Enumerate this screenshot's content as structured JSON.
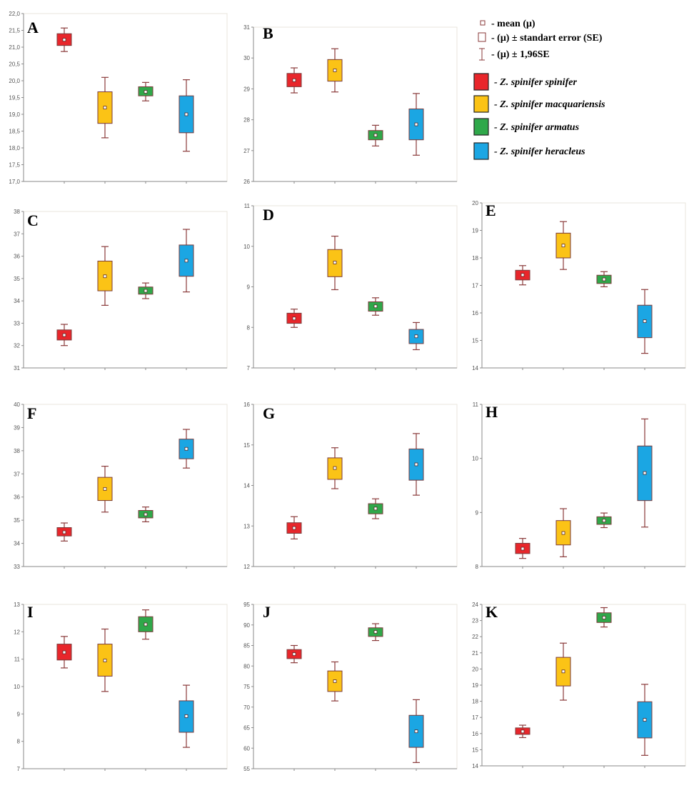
{
  "legend": {
    "mean_label": "- mean (μ)",
    "se_label": "- (μ) ± standart error (SE)",
    "ci_label": "- (μ) ± 1,96SE",
    "subspecies": [
      {
        "label": "- Z. spinifer spinifer",
        "color": "#e8262b"
      },
      {
        "label": "- Z. spinifer macquariensis",
        "color": "#fbc316"
      },
      {
        "label": "- Z. spinifer armatus",
        "color": "#2fa84a"
      },
      {
        "label": "- Z. spinifer heracleus",
        "color": "#1ba6e3"
      }
    ],
    "whisker_color": "#8a3a3a"
  },
  "chart_data": [
    {
      "type": "box",
      "panel": "A",
      "ylim": [
        17.0,
        22.0
      ],
      "yticks": [
        "17,0",
        "17,5",
        "18,0",
        "18,5",
        "19,0",
        "19,5",
        "20,0",
        "20,5",
        "21,0",
        "21,5",
        "22,0"
      ],
      "series": [
        {
          "mean": 21.22,
          "se": [
            21.05,
            21.4
          ],
          "ci": [
            20.87,
            21.57
          ]
        },
        {
          "mean": 19.2,
          "se": [
            18.73,
            19.67
          ],
          "ci": [
            18.3,
            20.1
          ]
        },
        {
          "mean": 19.67,
          "se": [
            19.55,
            19.82
          ],
          "ci": [
            19.4,
            19.95
          ]
        },
        {
          "mean": 19.0,
          "se": [
            18.45,
            19.55
          ],
          "ci": [
            17.9,
            20.03
          ]
        }
      ]
    },
    {
      "type": "box",
      "panel": "B",
      "ylim": [
        26,
        31
      ],
      "yticks": [
        "26",
        "27",
        "28",
        "29",
        "30",
        "31"
      ],
      "series": [
        {
          "mean": 29.28,
          "se": [
            29.07,
            29.5
          ],
          "ci": [
            28.87,
            29.68
          ]
        },
        {
          "mean": 29.6,
          "se": [
            29.25,
            29.95
          ],
          "ci": [
            28.9,
            30.3
          ]
        },
        {
          "mean": 27.5,
          "se": [
            27.35,
            27.65
          ],
          "ci": [
            27.15,
            27.82
          ]
        },
        {
          "mean": 27.85,
          "se": [
            27.35,
            28.35
          ],
          "ci": [
            26.85,
            28.85
          ]
        }
      ]
    },
    {
      "type": "box",
      "panel": "C",
      "ylim": [
        31,
        38
      ],
      "yticks": [
        "31",
        "32",
        "33",
        "34",
        "35",
        "36",
        "37",
        "38"
      ],
      "series": [
        {
          "mean": 32.47,
          "se": [
            32.25,
            32.7
          ],
          "ci": [
            32.0,
            32.95
          ]
        },
        {
          "mean": 35.1,
          "se": [
            34.45,
            35.78
          ],
          "ci": [
            33.8,
            36.43
          ]
        },
        {
          "mean": 34.45,
          "se": [
            34.3,
            34.62
          ],
          "ci": [
            34.1,
            34.8
          ]
        },
        {
          "mean": 35.8,
          "se": [
            35.1,
            36.5
          ],
          "ci": [
            34.4,
            37.2
          ]
        }
      ]
    },
    {
      "type": "box",
      "panel": "D",
      "ylim": [
        7,
        11
      ],
      "yticks": [
        "7",
        "8",
        "9",
        "10",
        "11"
      ],
      "series": [
        {
          "mean": 8.22,
          "se": [
            8.1,
            8.35
          ],
          "ci": [
            8.0,
            8.45
          ]
        },
        {
          "mean": 9.6,
          "se": [
            9.25,
            9.92
          ],
          "ci": [
            8.93,
            10.25
          ]
        },
        {
          "mean": 8.52,
          "se": [
            8.4,
            8.63
          ],
          "ci": [
            8.3,
            8.73
          ]
        },
        {
          "mean": 7.78,
          "se": [
            7.6,
            7.95
          ],
          "ci": [
            7.45,
            8.12
          ]
        }
      ]
    },
    {
      "type": "box",
      "panel": "E",
      "ylim": [
        14,
        20
      ],
      "yticks": [
        "14",
        "15",
        "16",
        "17",
        "18",
        "19",
        "20"
      ],
      "series": [
        {
          "mean": 17.38,
          "se": [
            17.2,
            17.55
          ],
          "ci": [
            17.02,
            17.72
          ]
        },
        {
          "mean": 18.45,
          "se": [
            18.0,
            18.9
          ],
          "ci": [
            17.58,
            19.32
          ]
        },
        {
          "mean": 17.22,
          "se": [
            17.07,
            17.37
          ],
          "ci": [
            16.95,
            17.5
          ]
        },
        {
          "mean": 15.7,
          "se": [
            15.1,
            16.28
          ],
          "ci": [
            14.53,
            16.85
          ]
        }
      ]
    },
    {
      "type": "box",
      "panel": "F",
      "ylim": [
        33,
        40
      ],
      "yticks": [
        "33",
        "34",
        "35",
        "36",
        "37",
        "38",
        "39",
        "40"
      ],
      "series": [
        {
          "mean": 34.48,
          "se": [
            34.32,
            34.68
          ],
          "ci": [
            34.1,
            34.88
          ]
        },
        {
          "mean": 36.35,
          "se": [
            35.85,
            36.85
          ],
          "ci": [
            35.35,
            37.33
          ]
        },
        {
          "mean": 35.25,
          "se": [
            35.1,
            35.42
          ],
          "ci": [
            34.93,
            35.57
          ]
        },
        {
          "mean": 38.08,
          "se": [
            37.65,
            38.5
          ],
          "ci": [
            37.25,
            38.92
          ]
        }
      ]
    },
    {
      "type": "box",
      "panel": "G",
      "ylim": [
        12,
        16
      ],
      "yticks": [
        "12",
        "13",
        "14",
        "15",
        "16"
      ],
      "series": [
        {
          "mean": 12.95,
          "se": [
            12.82,
            13.08
          ],
          "ci": [
            12.68,
            13.23
          ]
        },
        {
          "mean": 14.43,
          "se": [
            14.15,
            14.68
          ],
          "ci": [
            13.92,
            14.93
          ]
        },
        {
          "mean": 13.43,
          "se": [
            13.3,
            13.55
          ],
          "ci": [
            13.18,
            13.67
          ]
        },
        {
          "mean": 14.52,
          "se": [
            14.13,
            14.9
          ],
          "ci": [
            13.76,
            15.28
          ]
        }
      ]
    },
    {
      "type": "box",
      "panel": "H",
      "ylim": [
        8,
        11
      ],
      "yticks": [
        "8",
        "9",
        "10",
        "11"
      ],
      "series": [
        {
          "mean": 8.33,
          "se": [
            8.24,
            8.43
          ],
          "ci": [
            8.15,
            8.52
          ]
        },
        {
          "mean": 8.62,
          "se": [
            8.4,
            8.85
          ],
          "ci": [
            8.18,
            9.07
          ]
        },
        {
          "mean": 8.85,
          "se": [
            8.78,
            8.92
          ],
          "ci": [
            8.72,
            8.99
          ]
        },
        {
          "mean": 9.73,
          "se": [
            9.22,
            10.23
          ],
          "ci": [
            8.73,
            10.73
          ]
        }
      ]
    },
    {
      "type": "box",
      "panel": "I",
      "ylim": [
        7,
        13
      ],
      "yticks": [
        "7",
        "8",
        "9",
        "10",
        "11",
        "12",
        "13"
      ],
      "series": [
        {
          "mean": 11.25,
          "se": [
            10.97,
            11.55
          ],
          "ci": [
            10.68,
            11.83
          ]
        },
        {
          "mean": 10.95,
          "se": [
            10.38,
            11.55
          ],
          "ci": [
            9.82,
            12.1
          ]
        },
        {
          "mean": 12.27,
          "se": [
            12.0,
            12.55
          ],
          "ci": [
            11.73,
            12.8
          ]
        },
        {
          "mean": 8.92,
          "se": [
            8.33,
            9.48
          ],
          "ci": [
            7.78,
            10.05
          ]
        }
      ]
    },
    {
      "type": "box",
      "panel": "J",
      "ylim": [
        55,
        95
      ],
      "yticks": [
        "55",
        "60",
        "65",
        "70",
        "75",
        "80",
        "85",
        "90",
        "95"
      ],
      "series": [
        {
          "mean": 82.9,
          "se": [
            81.8,
            84.0
          ],
          "ci": [
            80.8,
            85.0
          ]
        },
        {
          "mean": 76.3,
          "se": [
            73.8,
            78.8
          ],
          "ci": [
            71.5,
            81.0
          ]
        },
        {
          "mean": 88.3,
          "se": [
            87.2,
            89.3
          ],
          "ci": [
            86.2,
            90.3
          ]
        },
        {
          "mean": 64.1,
          "se": [
            60.2,
            68.0
          ],
          "ci": [
            56.5,
            71.8
          ]
        }
      ]
    },
    {
      "type": "box",
      "panel": "K",
      "ylim": [
        14,
        24
      ],
      "yticks": [
        "14",
        "15",
        "16",
        "17",
        "18",
        "19",
        "20",
        "21",
        "22",
        "23",
        "24"
      ],
      "series": [
        {
          "mean": 16.13,
          "se": [
            15.95,
            16.35
          ],
          "ci": [
            15.75,
            16.52
          ]
        },
        {
          "mean": 19.85,
          "se": [
            18.95,
            20.72
          ],
          "ci": [
            18.07,
            21.6
          ]
        },
        {
          "mean": 23.18,
          "se": [
            22.88,
            23.48
          ],
          "ci": [
            22.6,
            23.8
          ]
        },
        {
          "mean": 16.85,
          "se": [
            15.73,
            17.97
          ],
          "ci": [
            14.65,
            19.05
          ]
        }
      ]
    }
  ]
}
